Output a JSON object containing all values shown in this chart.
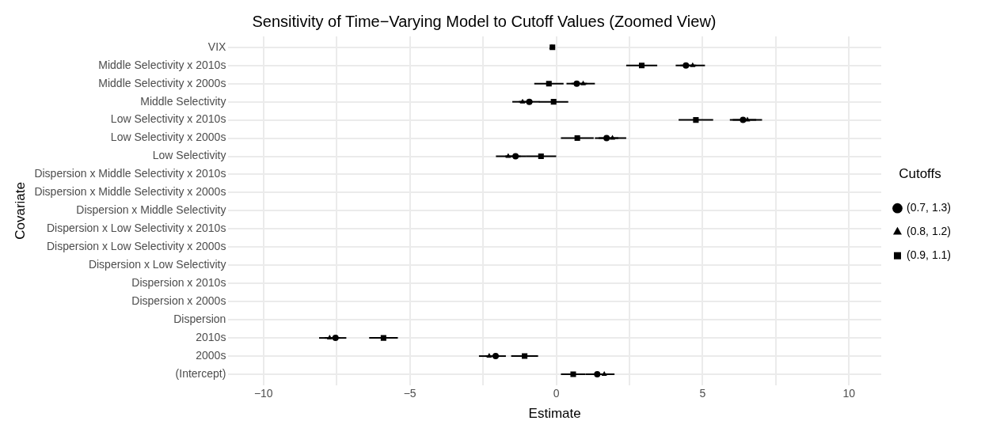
{
  "chart_data": {
    "type": "scatter",
    "orientation": "horizontal",
    "title": "Sensitivity of Time−Varying Model to Cutoff Values (Zoomed View)",
    "xlabel": "Estimate",
    "ylabel": "Covariate",
    "legend_title": "Cutoffs",
    "legend": "right",
    "grid": true,
    "categories": [
      "VIX",
      "Middle Selectivity x 2010s",
      "Middle Selectivity x 2000s",
      "Middle Selectivity",
      "Low Selectivity x 2010s",
      "Low Selectivity x 2000s",
      "Low Selectivity",
      "Dispersion x Middle Selectivity x 2010s",
      "Dispersion x Middle Selectivity x 2000s",
      "Dispersion x Middle Selectivity",
      "Dispersion x Low Selectivity x 2010s",
      "Dispersion x Low Selectivity x 2000s",
      "Dispersion x Low Selectivity",
      "Dispersion x 2010s",
      "Dispersion x 2000s",
      "Dispersion",
      "2010s",
      "2000s",
      "(Intercept)"
    ],
    "xlim": [
      -11.2,
      11.1
    ],
    "xticks": [
      {
        "value": -10,
        "label": "−10"
      },
      {
        "value": -7.5,
        "label": null
      },
      {
        "value": -5,
        "label": "−5"
      },
      {
        "value": -2.5,
        "label": null
      },
      0,
      {
        "value": 2.5,
        "label": null
      },
      5,
      {
        "value": 7.5,
        "label": null
      },
      10
    ],
    "series": [
      {
        "name": "(0.7, 1.3)",
        "color": "#000000",
        "marker": "circle",
        "values": [
          null,
          4.43,
          0.7,
          -0.92,
          6.38,
          1.72,
          -1.39,
          null,
          null,
          null,
          null,
          null,
          null,
          null,
          null,
          null,
          -7.54,
          -2.07,
          1.4
        ],
        "errors": [
          null,
          0.35,
          0.35,
          0.35,
          0.45,
          0.4,
          0.35,
          null,
          null,
          null,
          null,
          null,
          null,
          null,
          null,
          null,
          0.37,
          0.35,
          0.4
        ]
      },
      {
        "name": "(0.8, 1.2)",
        "color": "#000000",
        "marker": "triangle",
        "values": [
          -0.15,
          4.66,
          0.92,
          -1.15,
          6.53,
          1.92,
          -1.64,
          null,
          null,
          null,
          null,
          null,
          null,
          null,
          null,
          null,
          -7.74,
          -2.29,
          1.64
        ],
        "errors": [
          null,
          0.42,
          0.4,
          0.35,
          0.5,
          0.47,
          0.42,
          null,
          null,
          null,
          null,
          null,
          null,
          null,
          null,
          null,
          0.36,
          0.35,
          0.35
        ]
      },
      {
        "name": "(0.9, 1.1)",
        "color": "#000000",
        "marker": "square",
        "values": [
          -0.13,
          2.92,
          -0.25,
          -0.09,
          4.77,
          0.72,
          -0.52,
          null,
          null,
          null,
          null,
          null,
          null,
          null,
          null,
          null,
          -5.9,
          -1.08,
          0.58
        ],
        "errors": [
          null,
          0.53,
          0.5,
          0.5,
          0.59,
          0.56,
          0.52,
          null,
          null,
          null,
          null,
          null,
          null,
          null,
          null,
          null,
          0.49,
          0.46,
          0.42
        ]
      }
    ]
  }
}
